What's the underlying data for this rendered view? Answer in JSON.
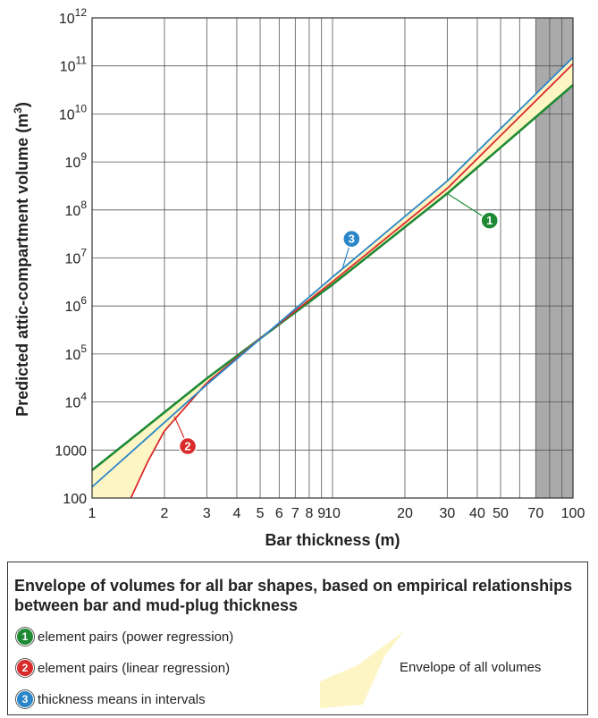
{
  "chart_data": {
    "type": "line",
    "xlabel": "Bar thickness (m)",
    "ylabel": "Predicted attic-compartment volume (m",
    "ylabel_sup": "3",
    "ylabel_close": ")",
    "x_scale": "log",
    "y_scale": "log",
    "xlim": [
      1,
      100
    ],
    "ylim": [
      100,
      1000000000000
    ],
    "grid": true,
    "x_ticks": [
      {
        "value": 1,
        "label": "1"
      },
      {
        "value": 2,
        "label": "2"
      },
      {
        "value": 3,
        "label": "3"
      },
      {
        "value": 4,
        "label": "4"
      },
      {
        "value": 5,
        "label": "5"
      },
      {
        "value": 6,
        "label": "6"
      },
      {
        "value": 7,
        "label": "7"
      },
      {
        "value": 8,
        "label": "8"
      },
      {
        "value": 9,
        "label": "9"
      },
      {
        "value": 10,
        "label": "10"
      },
      {
        "value": 20,
        "label": "20"
      },
      {
        "value": 30,
        "label": "30"
      },
      {
        "value": 40,
        "label": "40"
      },
      {
        "value": 50,
        "label": "50"
      },
      {
        "value": 70,
        "label": "70"
      },
      {
        "value": 100,
        "label": "100"
      }
    ],
    "x_grid": [
      2,
      3,
      4,
      5,
      6,
      7,
      8,
      9,
      10,
      20,
      30,
      40,
      50,
      60,
      70,
      80,
      90
    ],
    "y_ticks": [
      {
        "exp": 2,
        "label": "100"
      },
      {
        "exp": 3,
        "label": "1000"
      },
      {
        "exp": 4,
        "base": "10",
        "sup": "4"
      },
      {
        "exp": 5,
        "base": "10",
        "sup": "5"
      },
      {
        "exp": 6,
        "base": "10",
        "sup": "6"
      },
      {
        "exp": 7,
        "base": "10",
        "sup": "7"
      },
      {
        "exp": 8,
        "base": "10",
        "sup": "8"
      },
      {
        "exp": 9,
        "base": "10",
        "sup": "9"
      },
      {
        "exp": 10,
        "base": "10",
        "sup": "10"
      },
      {
        "exp": 11,
        "base": "10",
        "sup": "11"
      },
      {
        "exp": 12,
        "base": "10",
        "sup": "12"
      }
    ],
    "shaded_x_range": [
      70,
      100
    ],
    "series": [
      {
        "id": "1",
        "x": [
          1,
          3,
          10,
          30,
          100
        ],
        "y": [
          380,
          31000,
          2800000,
          220000000,
          40000000000
        ],
        "color": "#1e8a34"
      },
      {
        "id": "2",
        "x": [
          1.45,
          1.7,
          2,
          3,
          5,
          10,
          30,
          100
        ],
        "y": [
          100,
          560,
          2500,
          25000,
          210000,
          3200000,
          280000000,
          110000000000
        ],
        "color": "#d92b2b"
      },
      {
        "id": "3",
        "x": [
          1,
          3,
          10,
          30,
          100
        ],
        "y": [
          170,
          23000,
          4000000,
          400000000,
          150000000000
        ],
        "color": "#2a86c8"
      }
    ],
    "envelope_fill": "#fdf5c4",
    "annotations": [
      {
        "id": "1",
        "color": "#1e8a34",
        "x": 45,
        "y": 60000000,
        "line_to_x": 30,
        "line_to_y": 220000000
      },
      {
        "id": "2",
        "color": "#d92b2b",
        "x": 2.5,
        "y": 1200,
        "line_to_x": 2.2,
        "line_to_y": 5000
      },
      {
        "id": "3",
        "color": "#2a86c8",
        "x": 12,
        "y": 25000000,
        "line_to_x": 11,
        "line_to_y": 6000000
      }
    ]
  },
  "legend": {
    "title": "Envelope of volumes for all bar shapes, based on empirical relationships between bar and mud-plug thickness",
    "items": [
      {
        "id": "1",
        "color": "#1e8a34",
        "label": "element pairs (power regression)"
      },
      {
        "id": "2",
        "color": "#d92b2b",
        "label": "element pairs (linear regression)"
      },
      {
        "id": "3",
        "color": "#2a86c8",
        "label": "thickness means in intervals"
      }
    ],
    "envelope_label": "Envelope of all volumes"
  }
}
